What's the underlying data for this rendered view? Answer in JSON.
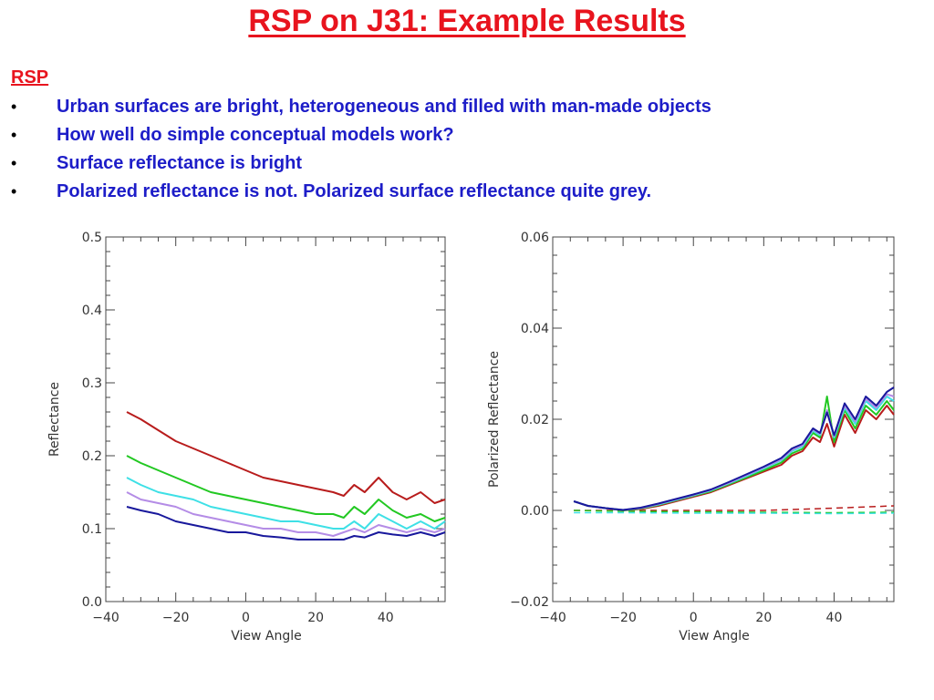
{
  "slide": {
    "title": "RSP on J31: Example Results",
    "section_label": "RSP",
    "bullets": [
      "Urban surfaces are bright, heterogeneous and filled with man-made objects",
      "How well do simple conceptual models work?",
      "Surface reflectance is bright",
      "Polarized reflectance is not. Polarized surface reflectance quite grey."
    ],
    "bullet_glyph": "•"
  },
  "colors": {
    "title": "#e8141e",
    "bullet_text": "#1d1dc8",
    "series": [
      "#b81c1c",
      "#22c822",
      "#3ee0e6",
      "#b48ce6",
      "#18189c"
    ]
  },
  "chart_data": [
    {
      "type": "line",
      "title": "",
      "xlabel": "View Angle",
      "ylabel": "Reflectance",
      "xlim": [
        -40,
        57
      ],
      "ylim": [
        0.0,
        0.5
      ],
      "xticks": [
        -40,
        -20,
        0,
        20,
        40
      ],
      "xtick_labels": [
        "−40",
        "−20",
        "0",
        "20",
        "40"
      ],
      "yticks": [
        0.0,
        0.1,
        0.2,
        0.3,
        0.4,
        0.5
      ],
      "ytick_labels": [
        "0.0",
        "0.1",
        "0.2",
        "0.3",
        "0.4",
        "0.5"
      ],
      "grid": false,
      "x": [
        -34,
        -30,
        -25,
        -20,
        -15,
        -10,
        -5,
        0,
        5,
        10,
        15,
        20,
        25,
        28,
        31,
        34,
        38,
        42,
        46,
        50,
        54,
        57
      ],
      "series": [
        {
          "color": "#b81c1c",
          "values": [
            0.26,
            0.25,
            0.235,
            0.22,
            0.21,
            0.2,
            0.19,
            0.18,
            0.17,
            0.165,
            0.16,
            0.155,
            0.15,
            0.145,
            0.16,
            0.15,
            0.17,
            0.15,
            0.14,
            0.15,
            0.135,
            0.14
          ]
        },
        {
          "color": "#22c822",
          "values": [
            0.2,
            0.19,
            0.18,
            0.17,
            0.16,
            0.15,
            0.145,
            0.14,
            0.135,
            0.13,
            0.125,
            0.12,
            0.12,
            0.115,
            0.13,
            0.12,
            0.14,
            0.125,
            0.115,
            0.12,
            0.11,
            0.115
          ]
        },
        {
          "color": "#3ee0e6",
          "values": [
            0.17,
            0.16,
            0.15,
            0.145,
            0.14,
            0.13,
            0.125,
            0.12,
            0.115,
            0.11,
            0.11,
            0.105,
            0.1,
            0.1,
            0.11,
            0.1,
            0.12,
            0.11,
            0.1,
            0.11,
            0.1,
            0.11
          ]
        },
        {
          "color": "#b48ce6",
          "values": [
            0.15,
            0.14,
            0.135,
            0.13,
            0.12,
            0.115,
            0.11,
            0.105,
            0.1,
            0.1,
            0.095,
            0.095,
            0.09,
            0.095,
            0.1,
            0.095,
            0.105,
            0.1,
            0.095,
            0.1,
            0.095,
            0.1
          ]
        },
        {
          "color": "#18189c",
          "values": [
            0.13,
            0.125,
            0.12,
            0.11,
            0.105,
            0.1,
            0.095,
            0.095,
            0.09,
            0.088,
            0.085,
            0.085,
            0.085,
            0.085,
            0.09,
            0.088,
            0.095,
            0.092,
            0.09,
            0.095,
            0.09,
            0.095
          ]
        }
      ]
    },
    {
      "type": "line",
      "title": "",
      "xlabel": "View Angle",
      "ylabel": "Polarized Reflectance",
      "xlim": [
        -40,
        57
      ],
      "ylim": [
        -0.02,
        0.06
      ],
      "xticks": [
        -40,
        -20,
        0,
        20,
        40
      ],
      "xtick_labels": [
        "−40",
        "−20",
        "0",
        "20",
        "40"
      ],
      "yticks": [
        -0.02,
        0.0,
        0.02,
        0.04,
        0.06
      ],
      "ytick_labels": [
        "−0.02",
        "0.00",
        "0.02",
        "0.04",
        "0.06"
      ],
      "grid": false,
      "x": [
        -34,
        -30,
        -25,
        -20,
        -15,
        -10,
        -5,
        0,
        5,
        10,
        15,
        20,
        25,
        28,
        31,
        34,
        36,
        38,
        40,
        43,
        46,
        49,
        52,
        55,
        57
      ],
      "series": [
        {
          "color": "#b81c1c",
          "values": [
            0.002,
            0.001,
            0.0005,
            0.0,
            0.0003,
            0.001,
            0.002,
            0.003,
            0.004,
            0.0055,
            0.007,
            0.0085,
            0.01,
            0.012,
            0.013,
            0.016,
            0.015,
            0.019,
            0.014,
            0.021,
            0.017,
            0.022,
            0.02,
            0.023,
            0.021
          ]
        },
        {
          "color": "#22c822",
          "values": [
            0.002,
            0.001,
            0.0005,
            0.0,
            0.0004,
            0.0012,
            0.0022,
            0.0032,
            0.0042,
            0.0057,
            0.0072,
            0.0088,
            0.0105,
            0.0125,
            0.0135,
            0.017,
            0.016,
            0.025,
            0.015,
            0.022,
            0.018,
            0.023,
            0.021,
            0.024,
            0.022
          ]
        },
        {
          "color": "#3ee0e6",
          "values": [
            0.002,
            0.001,
            0.0005,
            0.0001,
            0.0005,
            0.0013,
            0.0023,
            0.0033,
            0.0044,
            0.0059,
            0.0075,
            0.0092,
            0.011,
            0.013,
            0.014,
            0.0175,
            0.0165,
            0.022,
            0.016,
            0.0225,
            0.019,
            0.024,
            0.022,
            0.025,
            0.024
          ]
        },
        {
          "color": "#b48ce6",
          "values": [
            0.002,
            0.001,
            0.0005,
            0.0001,
            0.0005,
            0.0014,
            0.0024,
            0.0034,
            0.0045,
            0.006,
            0.0077,
            0.0094,
            0.0112,
            0.0133,
            0.0143,
            0.0178,
            0.0168,
            0.022,
            0.0163,
            0.023,
            0.0195,
            0.0245,
            0.0225,
            0.0255,
            0.025
          ]
        },
        {
          "color": "#18189c",
          "values": [
            0.002,
            0.001,
            0.0005,
            0.0001,
            0.0006,
            0.0015,
            0.0025,
            0.0035,
            0.0046,
            0.0062,
            0.0079,
            0.0096,
            0.0115,
            0.0136,
            0.0146,
            0.018,
            0.017,
            0.0215,
            0.0165,
            0.0235,
            0.02,
            0.025,
            0.023,
            0.026,
            0.027
          ]
        }
      ],
      "baseline_series": [
        {
          "color": "#b81c1c",
          "style": "dashed",
          "x": [
            -34,
            -20,
            0,
            20,
            40,
            57
          ],
          "values": [
            0.0,
            0.0,
            0.0,
            0.0,
            0.0005,
            0.001
          ]
        },
        {
          "color": "#22c822",
          "style": "dashed",
          "x": [
            -34,
            -20,
            0,
            20,
            40,
            57
          ],
          "values": [
            0.0,
            -0.0002,
            -0.0003,
            -0.0004,
            -0.0005,
            -0.0004
          ]
        },
        {
          "color": "#3ee0e6",
          "style": "dashed",
          "x": [
            -34,
            -20,
            0,
            20,
            40,
            57
          ],
          "values": [
            -0.0005,
            -0.0005,
            -0.0006,
            -0.0006,
            -0.0007,
            -0.0006
          ]
        }
      ]
    }
  ]
}
